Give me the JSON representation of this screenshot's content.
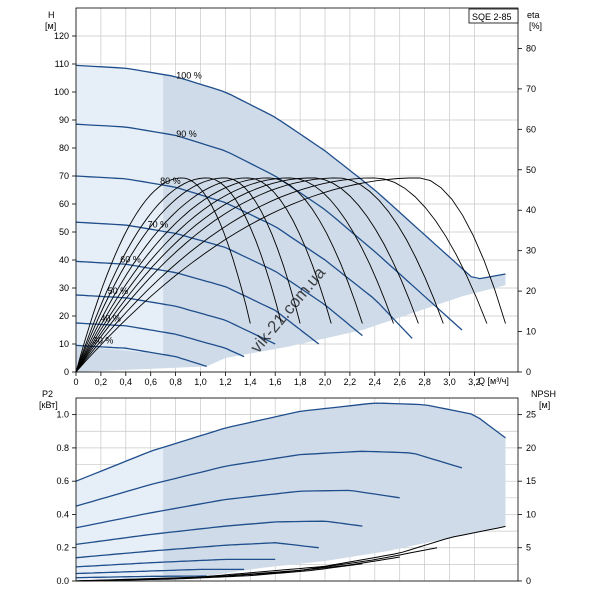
{
  "model_label": "SQE 2-85",
  "watermark": "vik-21.com.ua",
  "colors": {
    "curve": "#1f4e8c",
    "region": "#cfdbe8",
    "region_light": "#e6eef7",
    "eta_curve": "#000000",
    "grid": "#c8c8c8"
  },
  "chart_data": [
    {
      "type": "line",
      "name": "head-chart",
      "x_unit_label": "Q [м³/ч]",
      "x_ticks": [
        "0",
        "0,2",
        "0,4",
        "0,6",
        "0,8",
        "1,0",
        "1,2",
        "1,4",
        "1,6",
        "1,8",
        "2,0",
        "2,2",
        "2,4",
        "2,6",
        "2,8",
        "3,0",
        "3,2"
      ],
      "xlim": [
        0,
        3.55
      ],
      "left_axis": {
        "label_top": "H",
        "label_unit": "[м]",
        "ticks": [
          "0",
          "10",
          "20",
          "30",
          "40",
          "50",
          "60",
          "70",
          "80",
          "90",
          "100",
          "110",
          "120"
        ],
        "ylim": [
          0,
          130
        ]
      },
      "right_axis": {
        "label_top": "eta",
        "label_unit": "[%]",
        "ticks": [
          "0",
          "10",
          "20",
          "30",
          "40",
          "50",
          "60",
          "70",
          "80"
        ],
        "ylim": [
          0,
          90
        ]
      },
      "grid": true,
      "series": [
        {
          "name": "100 %",
          "x": [
            0,
            0.4,
            0.8,
            1.2,
            1.6,
            2.0,
            2.4,
            2.8,
            3.2,
            3.45
          ],
          "y": [
            109.5,
            108.5,
            105.5,
            100,
            91,
            79,
            65,
            49,
            33,
            35
          ]
        },
        {
          "name": "90 %",
          "x": [
            0,
            0.4,
            0.8,
            1.2,
            1.6,
            2.0,
            2.4,
            2.8,
            3.1
          ],
          "y": [
            88.5,
            87.5,
            84.5,
            79,
            70,
            58,
            43,
            27,
            15
          ]
        },
        {
          "name": "80 %",
          "x": [
            0,
            0.4,
            0.8,
            1.2,
            1.6,
            2.0,
            2.4,
            2.7
          ],
          "y": [
            70,
            69,
            66,
            60.5,
            52,
            40,
            26,
            12
          ]
        },
        {
          "name": "70 %",
          "x": [
            0,
            0.4,
            0.8,
            1.2,
            1.6,
            2.0,
            2.3
          ],
          "y": [
            53.5,
            52.5,
            49.5,
            44.5,
            36,
            24,
            13
          ]
        },
        {
          "name": "60 %",
          "x": [
            0,
            0.4,
            0.8,
            1.2,
            1.6,
            1.95
          ],
          "y": [
            39.5,
            38.5,
            35.5,
            30.5,
            22,
            10
          ]
        },
        {
          "name": "50 %",
          "x": [
            0,
            0.4,
            0.8,
            1.2,
            1.6
          ],
          "y": [
            27.5,
            26.5,
            23.5,
            18.5,
            10
          ]
        },
        {
          "name": "40 %",
          "x": [
            0,
            0.4,
            0.8,
            1.2,
            1.35
          ],
          "y": [
            17.5,
            16.5,
            13.5,
            8.5,
            5.5
          ]
        },
        {
          "name": "30 %",
          "x": [
            0,
            0.4,
            0.8,
            1.05
          ],
          "y": [
            9.5,
            8.5,
            5.5,
            2
          ]
        }
      ],
      "eta_peaks": [
        {
          "q": 0.85,
          "eta": 48,
          "q_end": 1.4
        },
        {
          "q": 1.05,
          "eta": 48,
          "q_end": 1.65
        },
        {
          "q": 1.2,
          "eta": 48,
          "q_end": 1.8
        },
        {
          "q": 1.38,
          "eta": 48,
          "q_end": 2.05
        },
        {
          "q": 1.55,
          "eta": 48,
          "q_end": 2.3
        },
        {
          "q": 1.72,
          "eta": 48,
          "q_end": 2.55
        },
        {
          "q": 1.9,
          "eta": 48,
          "q_end": 2.75
        },
        {
          "q": 2.1,
          "eta": 48,
          "q_end": 2.95
        },
        {
          "q": 2.4,
          "eta": 48,
          "q_end": 3.3
        },
        {
          "q": 2.75,
          "eta": 48,
          "q_end": 3.45
        }
      ]
    },
    {
      "type": "line",
      "name": "power-npsh-chart",
      "left_axis": {
        "label_top": "P2",
        "label_unit": "[кВт]",
        "ticks": [
          "0.0",
          "0.2",
          "0.4",
          "0.6",
          "0.8",
          "1.0"
        ],
        "ylim": [
          0,
          1.1
        ]
      },
      "right_axis": {
        "label_top": "NPSH",
        "label_unit": "[м]",
        "ticks": [
          "0",
          "5",
          "10",
          "15",
          "20",
          "25"
        ],
        "ylim": [
          0,
          27.5
        ]
      },
      "xlim": [
        0,
        3.55
      ],
      "grid": true,
      "series": [
        {
          "name": "100 %",
          "x": [
            0,
            0.6,
            1.2,
            1.8,
            2.4,
            2.8,
            3.2,
            3.45
          ],
          "y": [
            0.6,
            0.78,
            0.92,
            1.02,
            1.07,
            1.06,
            1.0,
            0.86
          ]
        },
        {
          "name": "90 %",
          "x": [
            0,
            0.6,
            1.2,
            1.8,
            2.3,
            2.7,
            3.1
          ],
          "y": [
            0.45,
            0.58,
            0.69,
            0.76,
            0.78,
            0.77,
            0.68
          ]
        },
        {
          "name": "80 %",
          "x": [
            0,
            0.6,
            1.2,
            1.8,
            2.2,
            2.6
          ],
          "y": [
            0.32,
            0.41,
            0.49,
            0.54,
            0.545,
            0.5
          ]
        },
        {
          "name": "70 %",
          "x": [
            0,
            0.6,
            1.2,
            1.6,
            2.0,
            2.3
          ],
          "y": [
            0.22,
            0.28,
            0.33,
            0.355,
            0.36,
            0.33
          ]
        },
        {
          "name": "60 %",
          "x": [
            0,
            0.6,
            1.2,
            1.6,
            1.95
          ],
          "y": [
            0.14,
            0.18,
            0.215,
            0.23,
            0.2
          ]
        },
        {
          "name": "50 %",
          "x": [
            0,
            0.6,
            1.2,
            1.6
          ],
          "y": [
            0.085,
            0.11,
            0.13,
            0.13
          ]
        },
        {
          "name": "40 %",
          "x": [
            0,
            0.6,
            1.0,
            1.35
          ],
          "y": [
            0.045,
            0.06,
            0.07,
            0.07
          ]
        },
        {
          "name": "30 %",
          "x": [
            0,
            0.6,
            1.05
          ],
          "y": [
            0.02,
            0.028,
            0.03
          ]
        }
      ],
      "npsh": [
        {
          "x": [
            0,
            1.0,
            2.0,
            2.6,
            3.0,
            3.45
          ],
          "y": [
            0,
            0.6,
            2.2,
            4.2,
            6.5,
            8.2
          ]
        },
        {
          "x": [
            0,
            1.0,
            1.8,
            2.4,
            2.9
          ],
          "y": [
            0,
            0.5,
            1.6,
            3.2,
            5.0
          ]
        },
        {
          "x": [
            0,
            0.9,
            1.6,
            2.2,
            2.6
          ],
          "y": [
            0,
            0.4,
            1.2,
            2.4,
            3.6
          ]
        },
        {
          "x": [
            0,
            0.8,
            1.4,
            1.9,
            2.3
          ],
          "y": [
            0,
            0.3,
            0.8,
            1.6,
            2.6
          ]
        }
      ]
    }
  ]
}
